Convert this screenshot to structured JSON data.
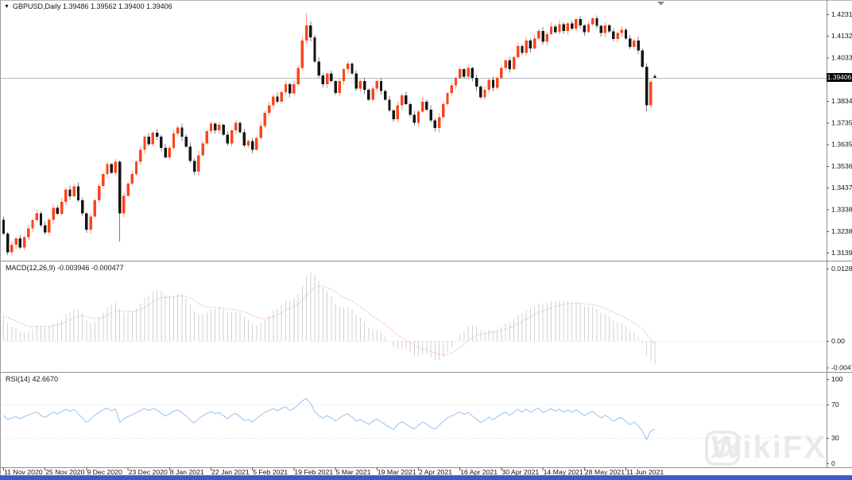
{
  "title_bar": {
    "marker": "▼",
    "symbol": "GBPUSD,Daily",
    "values": "1.39486 1.39562 1.39400 1.39406"
  },
  "panes": {
    "macd_label": "MACD(12,26,9) -0.003946 -0.000477",
    "rsi_label": "RSI(14) 42.6670"
  },
  "price_tag": "1.39406",
  "watermark": {
    "text": "WikiFX"
  },
  "price_axis": {
    "labels": [
      "1.42310",
      "1.41320",
      "1.40330",
      "1.38340",
      "1.37350",
      "1.36350",
      "1.35360",
      "1.34370",
      "1.33380",
      "1.32380",
      "1.31390"
    ]
  },
  "macd_axis": {
    "labels": [
      "0.012824",
      "0.00",
      "-0.004745"
    ]
  },
  "rsi_axis": {
    "labels": [
      "100",
      "70",
      "30",
      "0"
    ]
  },
  "time_axis": {
    "labels": [
      "11 Nov 2020",
      "25 Nov 2020",
      "9 Dec 2020",
      "23 Dec 2020",
      "8 Jan 2021",
      "22 Jan 2021",
      "5 Feb 2021",
      "19 Feb 2021",
      "5 Mar 2021",
      "19 Mar 2021",
      "2 Apr 2021",
      "16 Apr 2021",
      "30 Apr 2021",
      "14 May 2021",
      "28 May 2021",
      "11 Jun 2021"
    ]
  },
  "colors": {
    "candle_up": "#fa451c",
    "candle_down": "#151515",
    "macd_histogram": "#d2d2d2",
    "macd_signal": "#ee8585",
    "rsi_line": "#97c3ec",
    "price_line": "#b3bdc4",
    "levels": "#d9d9d9",
    "frame": "#8e8e8e",
    "bottom_bar": "#3d5acb",
    "axis_text": "#141414",
    "tag_bg": "#000000",
    "tag_text": "#ffffff"
  },
  "chart_data": {
    "type": "candlestick",
    "symbol": "GBPUSD",
    "timeframe": "Daily",
    "title_ohlc": {
      "open": 1.39486,
      "high": 1.39562,
      "low": 1.394,
      "close": 1.39406
    },
    "current_price": 1.39406,
    "price_axis_range": {
      "top_label": 1.4231,
      "bottom_label": 1.3139
    },
    "first_open": 1.329,
    "closes": [
      1.3226,
      1.314,
      1.3175,
      1.3205,
      1.3162,
      1.321,
      1.325,
      1.3288,
      1.332,
      1.3265,
      1.3232,
      1.329,
      1.3345,
      1.3318,
      1.3372,
      1.3428,
      1.3398,
      1.3442,
      1.338,
      1.332,
      1.3245,
      1.3305,
      1.338,
      1.3445,
      1.35,
      1.3545,
      1.3505,
      1.3555,
      1.332,
      1.34,
      1.3455,
      1.35,
      1.3555,
      1.361,
      1.367,
      1.3635,
      1.3688,
      1.367,
      1.362,
      1.3575,
      1.362,
      1.3685,
      1.3712,
      1.367,
      1.3625,
      1.356,
      1.351,
      1.3585,
      1.364,
      1.3695,
      1.373,
      1.37,
      1.3725,
      1.368,
      1.364,
      1.37,
      1.3735,
      1.369,
      1.363,
      1.365,
      1.361,
      1.3665,
      1.372,
      1.378,
      1.3815,
      1.3855,
      1.383,
      1.3875,
      1.391,
      1.3868,
      1.391,
      1.3985,
      1.411,
      1.418,
      1.4125,
      1.4015,
      1.395,
      1.391,
      1.396,
      1.3925,
      1.387,
      1.3925,
      1.398,
      1.4005,
      1.396,
      1.389,
      1.3925,
      1.3885,
      1.384,
      1.389,
      1.3925,
      1.388,
      1.384,
      1.379,
      1.375,
      1.3815,
      1.386,
      1.382,
      1.377,
      1.3735,
      1.3785,
      1.383,
      1.3795,
      1.3745,
      1.371,
      1.376,
      1.382,
      1.387,
      1.3905,
      1.394,
      1.398,
      1.3945,
      1.3985,
      1.394,
      1.39,
      1.385,
      1.3885,
      1.393,
      1.3895,
      1.394,
      1.3985,
      1.402,
      1.398,
      1.4035,
      1.4085,
      1.4055,
      1.411,
      1.4075,
      1.412,
      1.4155,
      1.4105,
      1.414,
      1.4175,
      1.415,
      1.4185,
      1.4155,
      1.419,
      1.4165,
      1.421,
      1.418,
      1.415,
      1.4185,
      1.4212,
      1.4178,
      1.4145,
      1.418,
      1.4152,
      1.4118,
      1.4146,
      1.416,
      1.412,
      1.4082,
      1.411,
      1.4065,
      1.399,
      1.3815,
      1.3922,
      1.39406
    ],
    "special_bars": {
      "1": {
        "low": 1.3128
      },
      "28": {
        "low": 1.319
      },
      "73": {
        "high": 1.4237
      },
      "155": {
        "low": 1.3787
      },
      "157": {
        "open": 1.39486,
        "high": 1.39562,
        "low": 1.394,
        "close": 1.39406
      }
    },
    "indicators": {
      "macd": {
        "fast": 12,
        "slow": 26,
        "signal": 9,
        "last_macd": -0.003946,
        "last_signal": -0.000477,
        "axis_top": 0.012824,
        "axis_zero": 0.0,
        "axis_bottom": -0.004745
      },
      "rsi": {
        "period": 14,
        "last": 42.667,
        "levels": [
          70,
          30
        ],
        "scale": [
          0,
          100
        ]
      }
    }
  }
}
